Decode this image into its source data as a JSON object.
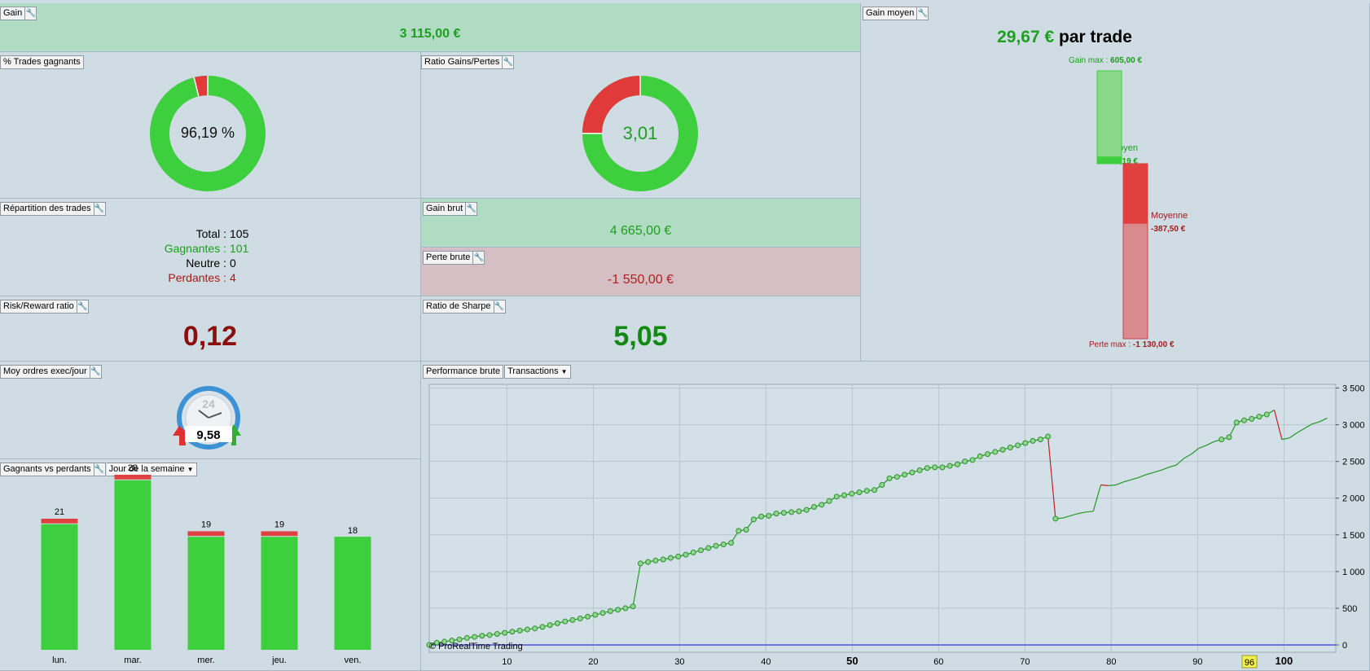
{
  "gain": {
    "label": "Gain",
    "value": "3 115,00 €"
  },
  "pct_trades": {
    "label": "% Trades gagnants",
    "value": "96,19 %",
    "fraction_win": 0.9619
  },
  "ratio": {
    "label": "Ratio Gains/Pertes",
    "value": "3,01",
    "fraction_win": 0.7506
  },
  "repartition": {
    "label": "Répartition des trades",
    "rows": [
      {
        "label": "Total :",
        "value": "105",
        "color": "#000000"
      },
      {
        "label": "Gagnantes :",
        "value": "101",
        "color": "#1c9e1c"
      },
      {
        "label": "Neutre :",
        "value": "0",
        "color": "#000000"
      },
      {
        "label": "Perdantes :",
        "value": "4",
        "color": "#a51a1a"
      }
    ]
  },
  "gain_brut": {
    "label": "Gain brut",
    "value": "4 665,00 €"
  },
  "perte_brute": {
    "label": "Perte brute",
    "value": "-1 550,00 €"
  },
  "risk_reward": {
    "label": "Risk/Reward ratio",
    "value": "0,12"
  },
  "sharpe": {
    "label": "Ratio de Sharpe",
    "value": "5,05"
  },
  "gain_moyen": {
    "label": "Gain moyen",
    "value": "29,67 €",
    "suffix": "par trade",
    "gain_max_label": "Gain max :",
    "gain_max_value": "605,00 €",
    "moyen_label": "Moyen",
    "moyen_value": "46,19 €",
    "moyenne_label": "Moyenne",
    "moyenne_value": "-387,50 €",
    "perte_max_label": "Perte max :",
    "perte_max_value": "-1 130,00 €",
    "gain_max": 605,
    "gain_avg": 46.19,
    "loss_avg": 387.5,
    "loss_max": 1130
  },
  "moy_ordres": {
    "label": "Moy ordres exec/jour",
    "value": "9,58",
    "clock_label": "24"
  },
  "gvp": {
    "label": "Gagnants vs perdants",
    "dropdown": "Jour de la semaine",
    "days": [
      "lun.",
      "mar.",
      "mer.",
      "jeu.",
      "ven."
    ],
    "totals": [
      "21",
      "28",
      "19",
      "19",
      "18"
    ]
  },
  "perf": {
    "label": "Performance brute",
    "dropdown": "Transactions",
    "copyright": "© ProRealTime Trading",
    "highlight": "96"
  },
  "chart_data": {
    "type": "bar",
    "categories": [
      "lun.",
      "mar.",
      "mer.",
      "jeu.",
      "ven."
    ],
    "series": [
      {
        "values": [
          20,
          27,
          18,
          18,
          18
        ],
        "color": "#3ecf3e"
      },
      {
        "values": [
          1,
          1,
          1,
          1,
          0
        ],
        "color": "#e04040"
      }
    ],
    "totals": [
      21,
      28,
      19,
      19,
      18
    ],
    "line": {
      "type": "line",
      "xlim": [
        1,
        106
      ],
      "ylim": [
        -100,
        3550
      ],
      "yticks": [
        0,
        500,
        1000,
        1500,
        2000,
        2500,
        3000,
        3500
      ],
      "ytick_labels": [
        "0",
        "500",
        "1 000",
        "1 500",
        "2 000",
        "2 500",
        "3 000",
        "3 500"
      ],
      "xticks": [
        10,
        20,
        30,
        40,
        50,
        60,
        70,
        80,
        90,
        100
      ],
      "y": [
        0,
        30,
        45,
        60,
        75,
        95,
        110,
        125,
        135,
        150,
        165,
        180,
        195,
        210,
        225,
        245,
        270,
        295,
        320,
        340,
        360,
        385,
        410,
        435,
        460,
        480,
        500,
        525,
        1110,
        1130,
        1150,
        1165,
        1185,
        1205,
        1230,
        1260,
        1290,
        1320,
        1350,
        1370,
        1390,
        1555,
        1570,
        1710,
        1750,
        1760,
        1790,
        1800,
        1810,
        1820,
        1840,
        1880,
        1910,
        1960,
        2020,
        2040,
        2060,
        2080,
        2100,
        2110,
        2180,
        2270,
        2290,
        2320,
        2350,
        2380,
        2410,
        2420,
        2420,
        2440,
        2460,
        2500,
        2520,
        2570,
        2600,
        2630,
        2660,
        2690,
        2720,
        2750,
        2780,
        2800,
        2840,
        1720,
        1730,
        1760,
        1790,
        1810,
        1820,
        2180,
        2170,
        2180,
        2220,
        2250,
        2280,
        2320,
        2350,
        2380,
        2420,
        2450,
        2540,
        2600,
        2680,
        2720,
        2770,
        2800,
        2830,
        3030,
        3060,
        3080,
        3110,
        3140,
        3200,
        2800,
        2820,
        2890,
        2950,
        3010,
        3040,
        3090
      ],
      "up_color": "#239823",
      "down_color": "#c42020",
      "baseline_color": "#2a3ad8"
    }
  }
}
